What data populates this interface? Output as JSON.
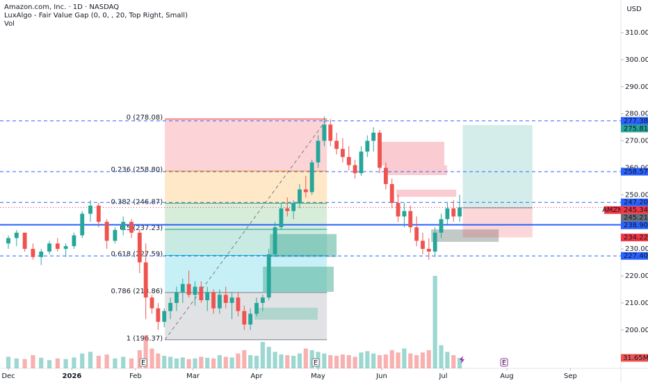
{
  "chart_data": {
    "type": "candlestick",
    "title": "Amazon.com, Inc. · 1D · NASDAQ",
    "indicator": "LuxAlgo - Fair Value Gap (0, 0, , 20, Top Right, Small)",
    "volume_title": "Vol",
    "currency": "USD",
    "colors": {
      "up": "#26a69a",
      "down": "#ef5350"
    },
    "xlim": [
      -4.07,
      298.6
    ],
    "xticks": [
      {
        "value": 0,
        "label": "Dec"
      },
      {
        "value": 31,
        "label": "2026"
      },
      {
        "value": 62,
        "label": "Feb"
      },
      {
        "value": 90,
        "label": "Mar"
      },
      {
        "value": 121,
        "label": "Apr"
      },
      {
        "value": 151,
        "label": "May"
      },
      {
        "value": 182,
        "label": "Jun"
      },
      {
        "value": 212,
        "label": "Jul"
      },
      {
        "value": 243,
        "label": "Aug"
      },
      {
        "value": 274,
        "label": "Sep"
      }
    ],
    "ylim": [
      185.8,
      322.1
    ],
    "yticks": [
      {
        "value": 200,
        "label": "200.00"
      },
      {
        "value": 210,
        "label": "210.00"
      },
      {
        "value": 220,
        "label": "220.00"
      },
      {
        "value": 230,
        "label": "230.00"
      },
      {
        "value": 240,
        "label": "240.00"
      },
      {
        "value": 250,
        "label": "250.00"
      },
      {
        "value": 260,
        "label": "260.00"
      },
      {
        "value": 270,
        "label": "270.00"
      },
      {
        "value": 280,
        "label": "280.00"
      },
      {
        "value": 290,
        "label": "290.00"
      },
      {
        "value": 300,
        "label": "300.00"
      },
      {
        "value": 310,
        "label": "310.00"
      }
    ],
    "x": [
      0,
      4,
      8,
      12,
      16,
      20,
      24,
      28,
      32,
      36,
      40,
      44,
      48,
      52,
      56,
      60,
      64,
      67,
      70,
      73,
      76,
      79,
      82,
      85,
      88,
      91,
      94,
      97,
      100,
      103,
      106,
      109,
      112,
      115,
      118,
      121,
      124,
      127,
      130,
      133,
      136,
      139,
      142,
      145,
      148,
      151,
      154,
      157,
      160,
      163,
      166,
      169,
      172,
      175,
      178,
      181,
      184,
      187,
      190,
      193,
      196,
      199,
      202,
      205,
      208,
      211,
      214,
      217,
      220
    ],
    "open": [
      232,
      234,
      236,
      230,
      227,
      229,
      232,
      230,
      231,
      235,
      243,
      246,
      240,
      233,
      237,
      240,
      236,
      225,
      212,
      208,
      203,
      207,
      210,
      214,
      217,
      213,
      216,
      211,
      214,
      208,
      213,
      210,
      212,
      207,
      202,
      206,
      210,
      212,
      228,
      238,
      245,
      244,
      247,
      252,
      251,
      262,
      270,
      276,
      270,
      267,
      264,
      261,
      258,
      266,
      270,
      273,
      260,
      254,
      247,
      242,
      244,
      238,
      233,
      230,
      229,
      236,
      241,
      245,
      242
    ],
    "high": [
      235,
      237,
      236,
      232,
      230,
      233,
      234,
      232,
      236,
      244,
      248,
      247,
      241,
      238,
      242,
      241,
      237,
      232,
      213,
      210,
      208,
      212,
      216,
      219,
      222,
      218,
      218,
      216,
      215,
      215,
      216,
      214,
      214,
      209,
      208,
      212,
      213,
      230,
      240,
      247,
      249,
      248,
      254,
      257,
      263,
      272,
      279,
      278,
      273,
      271,
      268,
      263,
      268,
      272,
      275,
      274,
      262,
      256,
      250,
      247,
      246,
      242,
      236,
      234,
      238,
      243,
      247,
      248,
      250
    ],
    "low": [
      230,
      231,
      229,
      226,
      224,
      228,
      229,
      227,
      230,
      234,
      240,
      238,
      230,
      232,
      235,
      234,
      221,
      204,
      206,
      200,
      201,
      204,
      207,
      210,
      212,
      209,
      210,
      207,
      206,
      206,
      208,
      204,
      205,
      200,
      200,
      205,
      207,
      211,
      227,
      237,
      242,
      241,
      245,
      249,
      250,
      260,
      268,
      268,
      265,
      262,
      259,
      256,
      257,
      264,
      266,
      258,
      252,
      245,
      240,
      238,
      236,
      231,
      228,
      226,
      227,
      234,
      239,
      240,
      240
    ],
    "close": [
      234,
      236,
      230,
      227,
      229,
      232,
      230,
      231,
      235,
      243,
      246,
      240,
      233,
      237,
      240,
      236,
      225,
      212,
      208,
      203,
      207,
      210,
      214,
      217,
      213,
      216,
      211,
      214,
      208,
      213,
      210,
      212,
      207,
      202,
      206,
      210,
      212,
      228,
      238,
      245,
      244,
      247,
      252,
      251,
      262,
      270,
      276,
      270,
      267,
      264,
      261,
      258,
      266,
      270,
      273,
      260,
      254,
      247,
      242,
      244,
      238,
      233,
      230,
      229,
      236,
      241,
      245,
      242,
      245.34
    ],
    "volume": [
      35,
      30,
      28,
      40,
      32,
      25,
      30,
      28,
      33,
      45,
      50,
      38,
      42,
      30,
      35,
      30,
      55,
      100,
      60,
      45,
      38,
      35,
      30,
      33,
      28,
      30,
      35,
      32,
      30,
      40,
      35,
      33,
      45,
      55,
      40,
      38,
      80,
      65,
      50,
      42,
      40,
      38,
      45,
      60,
      55,
      50,
      45,
      40,
      38,
      42,
      40,
      35,
      48,
      52,
      45,
      40,
      42,
      55,
      48,
      60,
      45,
      40,
      48,
      55,
      280,
      70,
      50,
      40,
      31.65
    ],
    "volume_lim": [
      0,
      280
    ],
    "last_volume_label": "31.65M",
    "fibonacci": {
      "start_x": 76.3,
      "end_x": 155.3,
      "levels": [
        {
          "value": 278.08,
          "label": "0 (278.08)",
          "color": "#f23645"
        },
        {
          "value": 258.8,
          "label": "0.236 (258.80)",
          "color": "#ff9800"
        },
        {
          "value": 246.87,
          "label": "0.382 (246.87)",
          "color": "#4caf50"
        },
        {
          "value": 237.23,
          "label": "0.5 (237.23)",
          "color": "#089981"
        },
        {
          "value": 227.59,
          "label": "0.618 (227.59)",
          "color": "#00bcd4"
        },
        {
          "value": 213.86,
          "label": "0.786 (213.86)",
          "color": "#787b86"
        },
        {
          "value": 196.37,
          "label": "1 (196.37)",
          "color": "#787b86"
        }
      ]
    },
    "fvg_boxes": [
      {
        "x0": 181.7,
        "x1": 212.5,
        "top": 269.6,
        "bottom": 260.9,
        "color": "#f7a9b0"
      },
      {
        "x0": 183.4,
        "x1": 213.9,
        "top": 260.9,
        "bottom": 257.3,
        "color": "#f7a9b0"
      },
      {
        "x0": 189.2,
        "x1": 218.3,
        "top": 251.9,
        "bottom": 249.3,
        "color": "#f7a9b0"
      },
      {
        "x0": 127.5,
        "x1": 160,
        "top": 235.5,
        "bottom": 227.0,
        "color": "#5fb8a2"
      },
      {
        "x0": 124.1,
        "x1": 158.6,
        "top": 223.4,
        "bottom": 214.1,
        "color": "#5fb8a2"
      },
      {
        "x0": 120,
        "x1": 150.8,
        "top": 208.2,
        "bottom": 203.8,
        "color": "#8fcdbd"
      },
      {
        "x0": 206.1,
        "x1": 239,
        "top": 237.2,
        "bottom": 232.6,
        "color": "#9aa7a3"
      }
    ],
    "position": {
      "x0": 221.5,
      "x1": 255.5,
      "target": 275.81,
      "entry": 245.21,
      "stop": 234.22
    },
    "events": [
      {
        "x": 65.8,
        "label": "E"
      },
      {
        "x": 149.8,
        "label": "E"
      },
      {
        "x": 241.7,
        "label": "E"
      }
    ],
    "price_labels": [
      {
        "value": 277.38,
        "color": "#2962ff",
        "line": "dashed"
      },
      {
        "value": 275.81,
        "color": "#26a69a"
      },
      {
        "value": 258.57,
        "color": "#2962ff",
        "line": "dashed"
      },
      {
        "value": 247.2,
        "label": "247.20",
        "color": "#2962ff",
        "line": "dashed"
      },
      {
        "value": 245.34,
        "name": "AMZN",
        "color": "#f23645",
        "line": "dotted"
      },
      {
        "value": 245.21,
        "color": "#6b6f7a"
      },
      {
        "value": 238.9,
        "label": "238.90",
        "color": "#2962ff",
        "line": "solid"
      },
      {
        "value": 234.22,
        "color": "#f23645"
      },
      {
        "value": 227.4,
        "label": "227.40",
        "color": "#2962ff",
        "line": "dashed"
      }
    ]
  }
}
